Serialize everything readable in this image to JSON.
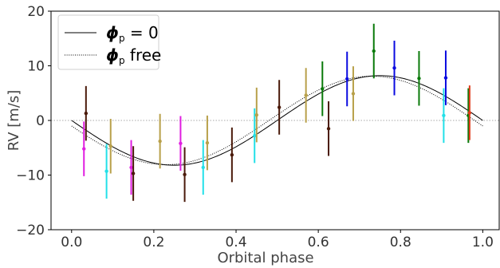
{
  "chart_data": {
    "type": "scatter",
    "xlabel": "Orbital phase",
    "ylabel": "RV [m/s]",
    "xlim": [
      -0.05,
      1.04
    ],
    "ylim": [
      -20,
      20
    ],
    "xticks": [
      0.0,
      0.2,
      0.4,
      0.6,
      0.8,
      1.0
    ],
    "xtick_labels": [
      "0.0",
      "0.2",
      "0.4",
      "0.6",
      "0.8",
      "1.0"
    ],
    "yticks": [
      -20,
      -10,
      0,
      10,
      20
    ],
    "ytick_labels": [
      "−20",
      "−10",
      "0",
      "10",
      "20"
    ],
    "legend": {
      "placement": "top-left",
      "entries": [
        {
          "label_symbol": "ϕ",
          "label_sub": "p",
          "label_suffix": " = 0",
          "style": "solid"
        },
        {
          "label_symbol": "ϕ",
          "label_sub": "p",
          "label_suffix": " free",
          "style": "dotted"
        }
      ]
    },
    "zero_line": true,
    "models": [
      {
        "style": "solid",
        "color": "#000000",
        "amplitude": 8.2,
        "phase_offset": 0.0,
        "offset": 0.0
      },
      {
        "style": "dotted",
        "color": "#000000",
        "amplitude": 8.1,
        "phase_offset": 0.02,
        "offset": 0.0
      }
    ],
    "points": [
      {
        "x": 0.03,
        "y": -5.2,
        "err": 5.0,
        "color": "#e01ee0"
      },
      {
        "x": 0.035,
        "y": 1.3,
        "err": 5.0,
        "color": "#4a1a0a"
      },
      {
        "x": 0.085,
        "y": -9.3,
        "err": 5.0,
        "color": "#22e0e8"
      },
      {
        "x": 0.095,
        "y": -4.7,
        "err": 5.0,
        "color": "#b8a04a"
      },
      {
        "x": 0.145,
        "y": -8.6,
        "err": 5.0,
        "color": "#e01ee0"
      },
      {
        "x": 0.15,
        "y": -9.7,
        "err": 5.0,
        "color": "#4a1a0a"
      },
      {
        "x": 0.215,
        "y": -3.8,
        "err": 5.0,
        "color": "#b8a04a"
      },
      {
        "x": 0.265,
        "y": -4.2,
        "err": 5.0,
        "color": "#e01ee0"
      },
      {
        "x": 0.275,
        "y": -9.9,
        "err": 5.0,
        "color": "#4a1a0a"
      },
      {
        "x": 0.32,
        "y": -8.6,
        "err": 5.0,
        "color": "#22e0e8"
      },
      {
        "x": 0.33,
        "y": -4.1,
        "err": 5.0,
        "color": "#b8a04a"
      },
      {
        "x": 0.39,
        "y": -6.3,
        "err": 5.0,
        "color": "#4a1a0a"
      },
      {
        "x": 0.445,
        "y": -2.8,
        "err": 5.0,
        "color": "#22e0e8"
      },
      {
        "x": 0.45,
        "y": 1.0,
        "err": 5.0,
        "color": "#b8a04a"
      },
      {
        "x": 0.505,
        "y": 2.4,
        "err": 5.0,
        "color": "#4a1a0a"
      },
      {
        "x": 0.57,
        "y": 4.6,
        "err": 5.0,
        "color": "#b8a04a"
      },
      {
        "x": 0.61,
        "y": 5.8,
        "err": 5.0,
        "color": "#0a7a0a"
      },
      {
        "x": 0.625,
        "y": -1.5,
        "err": 5.0,
        "color": "#4a1a0a"
      },
      {
        "x": 0.67,
        "y": 7.6,
        "err": 5.0,
        "color": "#0a0ae0"
      },
      {
        "x": 0.685,
        "y": 4.9,
        "err": 5.0,
        "color": "#b8a04a"
      },
      {
        "x": 0.735,
        "y": 12.7,
        "err": 5.0,
        "color": "#0a7a0a"
      },
      {
        "x": 0.785,
        "y": 9.6,
        "err": 5.0,
        "color": "#0a0ae0"
      },
      {
        "x": 0.845,
        "y": 7.7,
        "err": 5.0,
        "color": "#0a7a0a"
      },
      {
        "x": 0.905,
        "y": 0.9,
        "err": 5.0,
        "color": "#22e0e8"
      },
      {
        "x": 0.91,
        "y": 7.8,
        "err": 5.0,
        "color": "#0a0ae0"
      },
      {
        "x": 0.965,
        "y": 0.9,
        "err": 5.0,
        "color": "#0a7a0a"
      },
      {
        "x": 0.968,
        "y": 1.4,
        "err": 5.0,
        "color": "#e03a1a"
      }
    ]
  }
}
